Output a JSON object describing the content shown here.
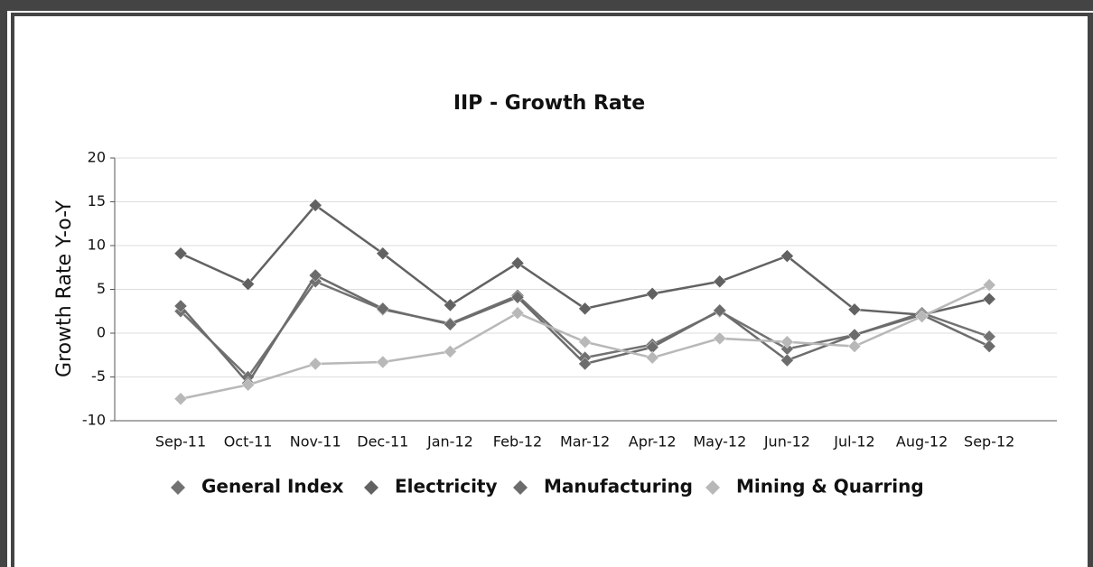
{
  "chart_data": {
    "type": "line",
    "title": "IIP - Growth Rate",
    "y_label": "Growth Rate Y-o-Y",
    "categories": [
      "Sep-11",
      "Oct-11",
      "Nov-11",
      "Dec-11",
      "Jan-12",
      "Feb-12",
      "Mar-12",
      "Apr-12",
      "May-12",
      "Jun-12",
      "Jul-12",
      "Aug-12",
      "Sep-12"
    ],
    "series": [
      {
        "name": "General Index",
        "color": "#727272",
        "values": [
          2.5,
          -5.0,
          5.9,
          2.7,
          1.1,
          4.3,
          -2.8,
          -1.3,
          2.5,
          -1.8,
          -0.2,
          2.3,
          -0.4
        ]
      },
      {
        "name": "Electricity",
        "color": "#626262",
        "values": [
          9.1,
          5.6,
          14.6,
          9.1,
          3.2,
          8.0,
          2.8,
          4.5,
          5.9,
          8.8,
          2.7,
          2.1,
          3.9
        ]
      },
      {
        "name": "Manufacturing",
        "color": "#6c6c6c",
        "values": [
          3.1,
          -5.7,
          6.6,
          2.8,
          1.0,
          4.1,
          -3.5,
          -1.6,
          2.6,
          -3.1,
          -0.2,
          2.1,
          -1.5
        ]
      },
      {
        "name": "Mining & Quarring",
        "color": "#b8b8b8",
        "values": [
          -7.5,
          -5.9,
          -3.5,
          -3.3,
          -2.1,
          2.3,
          -1.0,
          -2.8,
          -0.6,
          -1.0,
          -1.5,
          1.9,
          5.5
        ]
      }
    ],
    "ylim": [
      -10,
      20
    ],
    "yticks": [
      -10,
      -5,
      0,
      5,
      10,
      15,
      20
    ],
    "grid": true
  }
}
